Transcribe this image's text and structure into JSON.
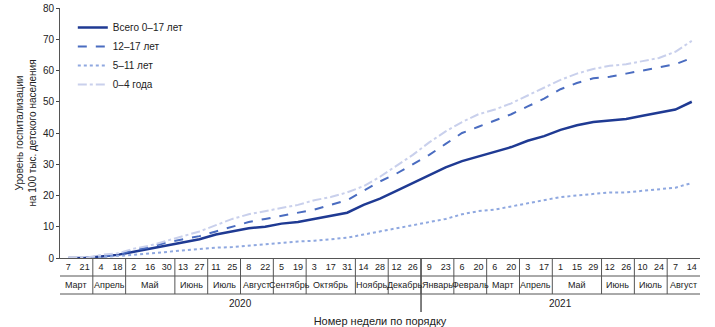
{
  "chart_data": {
    "type": "line",
    "y_label": "Уровень госпитализации\nна 100 тыс. детского населения",
    "x_label": "Номер недели по порядку",
    "categories": [
      "7",
      "21",
      "4",
      "18",
      "2",
      "16",
      "30",
      "13",
      "27",
      "11",
      "25",
      "8",
      "22",
      "5",
      "19",
      "3",
      "17",
      "31",
      "14",
      "28",
      "12",
      "26",
      "9",
      "23",
      "6",
      "20",
      "6",
      "20",
      "3",
      "17",
      "1",
      "15",
      "29",
      "12",
      "26",
      "10",
      "24",
      "7",
      "14"
    ],
    "series": [
      {
        "name": "Всего 0–17 лет",
        "color": "#1f3a93",
        "line_style": "solid",
        "values": [
          0,
          0,
          0.5,
          1,
          2,
          3,
          4,
          5,
          6,
          7.5,
          8.5,
          9.5,
          10,
          11,
          11.5,
          12.5,
          13.5,
          14.5,
          17,
          19,
          21.5,
          24,
          26.5,
          29,
          31,
          32.5,
          34,
          35.5,
          37.5,
          39,
          41,
          42.5,
          43.5,
          44,
          44.5,
          45.5,
          46.5,
          47.5,
          50
        ]
      },
      {
        "name": "12–17 лет",
        "color": "#4a6cc0",
        "line_style": "dash",
        "values": [
          0,
          0,
          0.5,
          1,
          2.5,
          3.5,
          5,
          6,
          7,
          8.5,
          10,
          11.5,
          12.5,
          13.5,
          14.5,
          15.5,
          17,
          18.5,
          21.5,
          24.5,
          27,
          30,
          33,
          36.5,
          40,
          42,
          44,
          46,
          48.5,
          51,
          54,
          56,
          57.5,
          58,
          59,
          60,
          61,
          62,
          64
        ]
      },
      {
        "name": "5–11 лет",
        "color": "#8fa8e0",
        "line_style": "dot",
        "values": [
          0,
          0,
          0.3,
          0.6,
          1,
          1.5,
          2,
          2.5,
          3,
          3.3,
          3.5,
          4,
          4.5,
          5,
          5.3,
          5.5,
          6,
          6.5,
          7.5,
          8.5,
          9.5,
          10.5,
          11.5,
          12.5,
          14,
          15,
          15.5,
          16.5,
          17.5,
          18.5,
          19.5,
          20,
          20.5,
          21,
          21,
          21.5,
          22,
          22.5,
          24
        ]
      },
      {
        "name": "0–4 года",
        "color": "#c9d0ec",
        "line_style": "dashdot",
        "values": [
          0,
          0,
          1,
          1.5,
          3,
          4,
          5.5,
          7,
          8.5,
          10.5,
          12.5,
          14,
          15,
          16,
          17,
          18.5,
          19.5,
          21,
          23,
          26,
          29.5,
          33,
          37,
          40.5,
          43.5,
          46,
          47.5,
          49.5,
          52,
          54.5,
          57,
          59,
          60.5,
          61.5,
          62,
          63,
          64,
          66,
          69.5
        ]
      }
    ],
    "month_groups": [
      {
        "label": "Март",
        "start": 0,
        "end": 1
      },
      {
        "label": "Апрель",
        "start": 2,
        "end": 3
      },
      {
        "label": "Май",
        "start": 4,
        "end": 6
      },
      {
        "label": "Июнь",
        "start": 7,
        "end": 8
      },
      {
        "label": "Июль",
        "start": 9,
        "end": 10
      },
      {
        "label": "Август",
        "start": 11,
        "end": 12
      },
      {
        "label": "Сентябрь",
        "start": 13,
        "end": 14
      },
      {
        "label": "Октябрь",
        "start": 15,
        "end": 17
      },
      {
        "label": "Ноябрь",
        "start": 18,
        "end": 19
      },
      {
        "label": "Декабрь",
        "start": 20,
        "end": 21
      },
      {
        "label": "Январь",
        "start": 22,
        "end": 23
      },
      {
        "label": "Февраль",
        "start": 24,
        "end": 25
      },
      {
        "label": "Март",
        "start": 26,
        "end": 27
      },
      {
        "label": "Апрель",
        "start": 28,
        "end": 29
      },
      {
        "label": "Май",
        "start": 30,
        "end": 32
      },
      {
        "label": "Июнь",
        "start": 33,
        "end": 34
      },
      {
        "label": "Июль",
        "start": 35,
        "end": 36
      },
      {
        "label": "Август",
        "start": 37,
        "end": 38
      }
    ],
    "year_groups": [
      {
        "label": "2020",
        "start": 0,
        "end": 21
      },
      {
        "label": "2021",
        "start": 22,
        "end": 38
      }
    ],
    "ylim": [
      0,
      80
    ],
    "yticks": [
      0,
      10,
      20,
      30,
      40,
      50,
      60,
      70,
      80
    ],
    "grid": false,
    "legend": "top-left"
  }
}
